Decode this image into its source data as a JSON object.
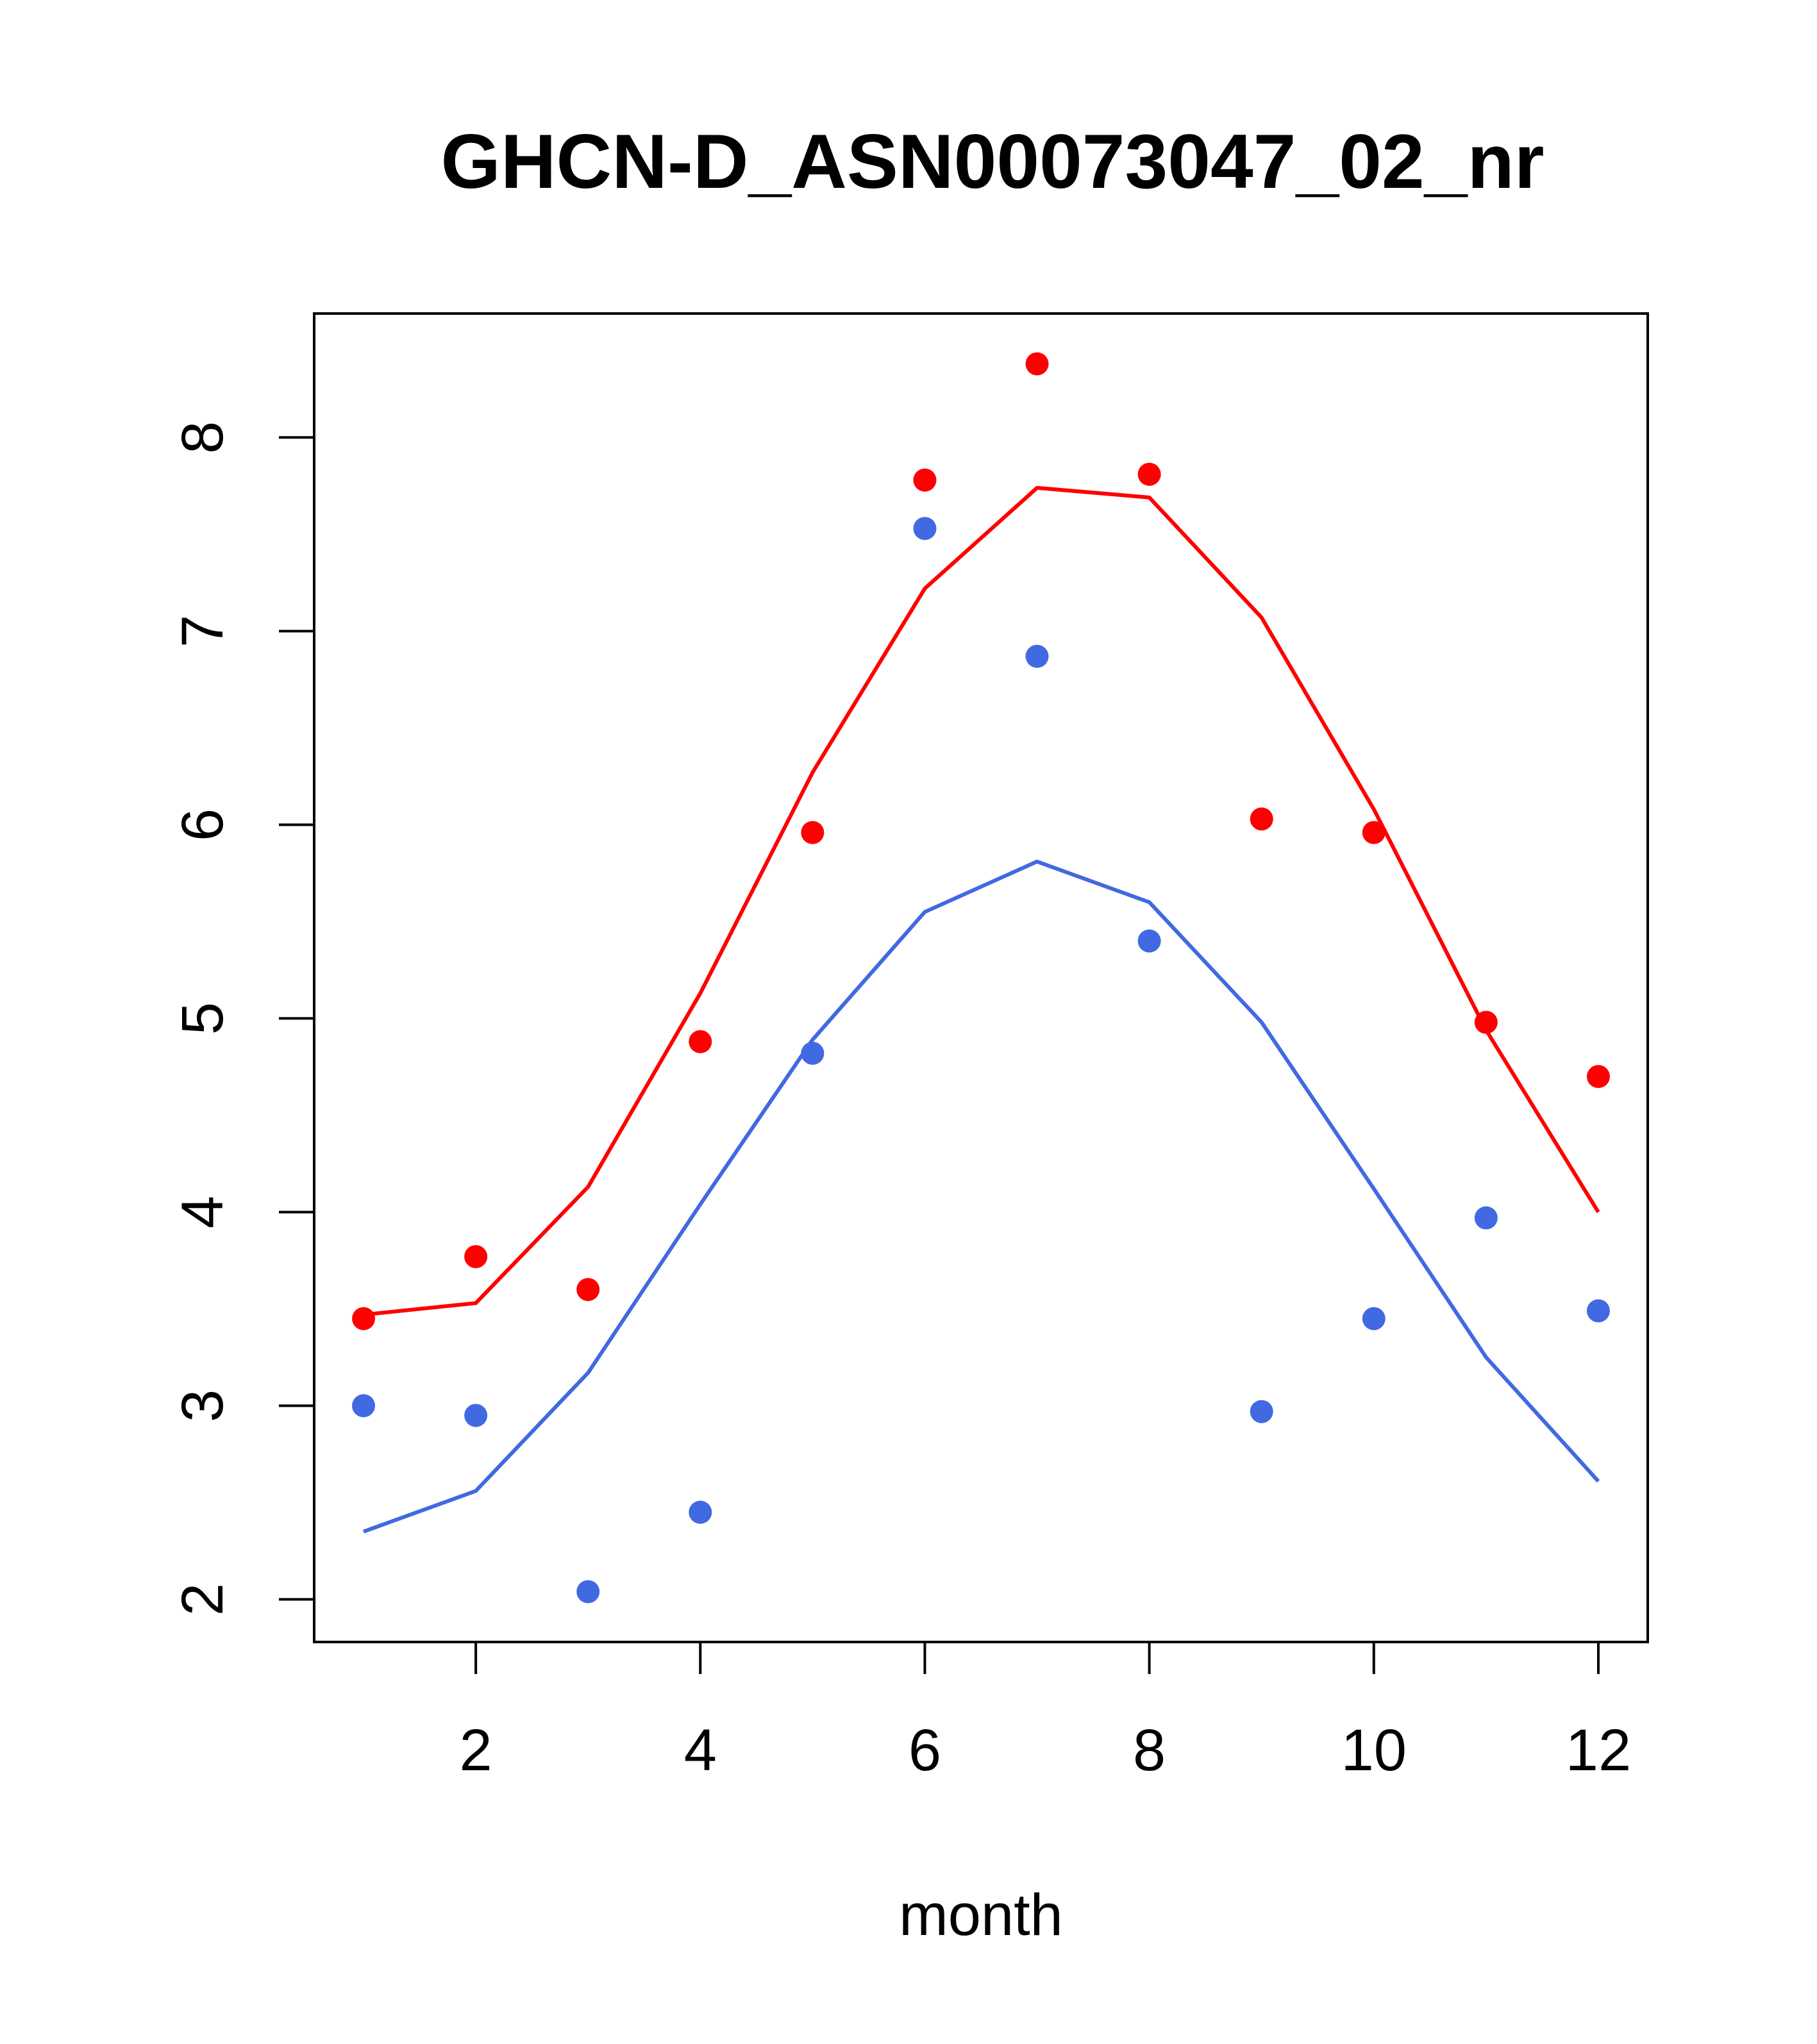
{
  "chart_data": {
    "type": "line",
    "title": "GHCN-D_ASN00073047_02_nr",
    "xlabel": "month",
    "ylabel": "",
    "xlim": [
      0.56,
      12.44
    ],
    "ylim": [
      1.78,
      8.64
    ],
    "x_ticks": [
      2,
      4,
      6,
      8,
      10,
      12
    ],
    "y_ticks": [
      2,
      3,
      4,
      5,
      6,
      7,
      8
    ],
    "grid": false,
    "legend": "none",
    "x": [
      1,
      2,
      3,
      4,
      5,
      6,
      7,
      8,
      9,
      10,
      11,
      12
    ],
    "series": [
      {
        "color": "#ff0000",
        "points": [
          3.45,
          3.77,
          3.6,
          4.88,
          5.96,
          7.78,
          8.38,
          7.81,
          6.03,
          5.96,
          4.98,
          4.7
        ],
        "line": [
          3.47,
          3.53,
          4.13,
          5.13,
          6.27,
          7.22,
          7.74,
          7.69,
          7.07,
          6.08,
          4.94,
          4.0
        ]
      },
      {
        "color": "#4169e1",
        "points": [
          3.0,
          2.95,
          2.04,
          2.45,
          4.82,
          7.53,
          6.87,
          5.4,
          2.97,
          3.45,
          3.97,
          3.49
        ],
        "line": [
          2.35,
          2.56,
          3.17,
          4.04,
          4.89,
          5.55,
          5.81,
          5.6,
          4.98,
          4.12,
          3.25,
          2.61
        ]
      }
    ]
  }
}
